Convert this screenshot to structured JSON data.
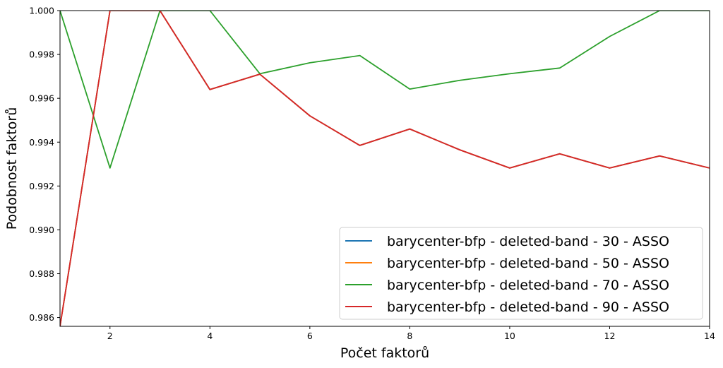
{
  "chart_data": {
    "type": "line",
    "xlabel": "Počet faktorů",
    "ylabel": "Podobnost faktorů",
    "xlim": [
      1,
      14
    ],
    "ylim": [
      0.9856,
      1.0
    ],
    "xticks": [
      2,
      4,
      6,
      8,
      10,
      12,
      14
    ],
    "yticks": [
      0.986,
      0.988,
      0.99,
      0.992,
      0.994,
      0.996,
      0.998,
      1.0
    ],
    "ytick_labels": [
      "0.986",
      "0.988",
      "0.990",
      "0.992",
      "0.994",
      "0.996",
      "0.998",
      "1.000"
    ],
    "grid": false,
    "legend_position": "lower-right",
    "x": [
      1,
      2,
      3,
      4,
      5,
      6,
      7,
      8,
      9,
      10,
      11,
      12,
      13,
      14
    ],
    "series": [
      {
        "name": "barycenter-bfp - deleted-band - 30 - ASSO",
        "color": "#1f77b4",
        "values": [
          0.9856,
          1.0,
          1.0,
          0.9964,
          0.9971,
          0.9952,
          0.99385,
          0.9946,
          0.99365,
          0.99282,
          0.99347,
          0.99282,
          0.99337,
          0.99282
        ]
      },
      {
        "name": "barycenter-bfp - deleted-band - 50 - ASSO",
        "color": "#ff7f0e",
        "values": [
          0.9856,
          1.0,
          1.0,
          0.9964,
          0.9971,
          0.9952,
          0.99385,
          0.9946,
          0.99365,
          0.99282,
          0.99347,
          0.99282,
          0.99337,
          0.99282
        ]
      },
      {
        "name": "barycenter-bfp - deleted-band - 70 - ASSO",
        "color": "#2ca02c",
        "values": [
          1.0,
          0.99282,
          1.0,
          1.0,
          0.99712,
          0.99762,
          0.99795,
          0.99642,
          0.99682,
          0.99712,
          0.99738,
          0.99882,
          1.0,
          1.0
        ]
      },
      {
        "name": "barycenter-bfp - deleted-band - 90 - ASSO",
        "color": "#d62728",
        "values": [
          0.9856,
          1.0,
          1.0,
          0.9964,
          0.9971,
          0.9952,
          0.99385,
          0.9946,
          0.99365,
          0.99282,
          0.99347,
          0.99282,
          0.99337,
          0.99282
        ]
      }
    ]
  }
}
